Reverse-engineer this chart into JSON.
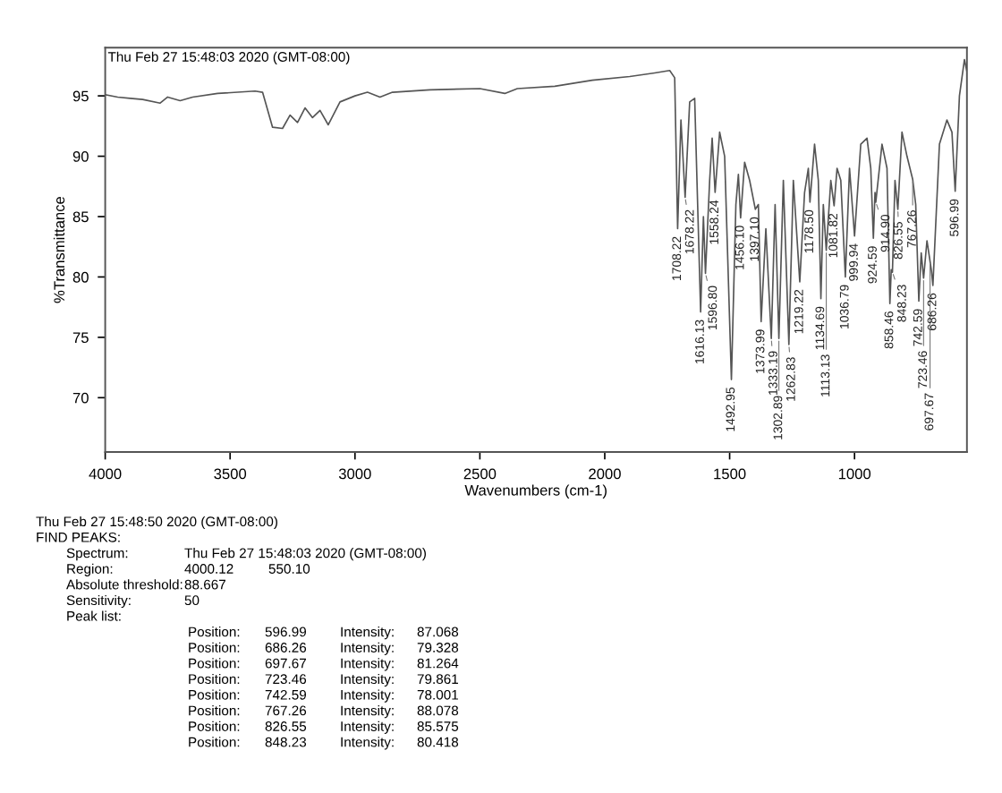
{
  "chart_data": {
    "type": "line",
    "xlabel": "Wavenumbers (cm-1)",
    "ylabel": "%Transmittance",
    "xlim": [
      4000,
      550
    ],
    "ylim": [
      65.5,
      99
    ],
    "xticks": [
      4000,
      3500,
      3000,
      2500,
      2000,
      1500,
      1000
    ],
    "yticks": [
      70,
      75,
      80,
      85,
      90,
      95
    ],
    "grid": false,
    "legend": false,
    "marker": "none",
    "line_style": "solid",
    "series": [
      {
        "color": "#555555",
        "x": [
          4000,
          3950,
          3900,
          3850,
          3780,
          3750,
          3700,
          3650,
          3550,
          3400,
          3370,
          3330,
          3290,
          3260,
          3230,
          3200,
          3170,
          3140,
          3107,
          3060,
          3000,
          2950,
          2900,
          2850,
          2700,
          2500,
          2400,
          2350,
          2200,
          2050,
          1900,
          1800,
          1740,
          1720,
          1708.22,
          1695,
          1678.22,
          1660,
          1640,
          1616.13,
          1605,
          1596.8,
          1580,
          1570,
          1558.24,
          1540,
          1520,
          1492.95,
          1475,
          1465,
          1456.1,
          1440,
          1420,
          1397.1,
          1385,
          1373.99,
          1355,
          1333.19,
          1318,
          1302.89,
          1285,
          1262.83,
          1245,
          1219.22,
          1200,
          1185,
          1178.5,
          1160,
          1145,
          1134.69,
          1125,
          1113.13,
          1095,
          1081.82,
          1070,
          1055,
          1036.79,
          1020,
          999.94,
          975,
          950,
          935,
          924.59,
          918,
          914.9,
          890,
          870,
          858.46,
          853,
          848.23,
          838,
          826.55,
          810,
          790,
          767.26,
          755,
          742.59,
          733,
          723.46,
          710,
          697.67,
          692,
          686.26,
          660,
          630,
          610,
          596.99,
          580,
          560,
          550
        ],
        "values": [
          95.1,
          94.9,
          94.8,
          94.7,
          94.4,
          94.9,
          94.6,
          94.9,
          95.2,
          95.4,
          95.3,
          92.4,
          92.3,
          93.4,
          92.8,
          94.0,
          93.2,
          93.8,
          92.6,
          94.5,
          95.0,
          95.3,
          94.9,
          95.3,
          95.5,
          95.6,
          95.2,
          95.6,
          95.8,
          96.3,
          96.6,
          96.9,
          97.1,
          96.5,
          84.0,
          93.0,
          86.6,
          94.5,
          94.8,
          77.1,
          85.0,
          80.3,
          88.0,
          91.5,
          87.0,
          92.0,
          90.0,
          71.5,
          86.0,
          88.5,
          84.9,
          89.5,
          88.0,
          85.6,
          86.0,
          76.3,
          84.0,
          74.9,
          86.0,
          74.9,
          88.0,
          74.4,
          88.0,
          79.6,
          87.0,
          89.0,
          86.2,
          91.0,
          88.0,
          78.2,
          86.0,
          82.2,
          88.0,
          85.9,
          89.0,
          88.0,
          80.0,
          89.0,
          83.4,
          91.0,
          91.5,
          89.0,
          83.2,
          87.0,
          86.2,
          91.0,
          89.0,
          77.8,
          80.6,
          80.4,
          88.0,
          85.6,
          92.0,
          90.0,
          88.1,
          86.0,
          78.0,
          82.0,
          79.9,
          83.0,
          81.3,
          80.5,
          79.3,
          91.0,
          93.0,
          92.0,
          87.1,
          95.0,
          98.0,
          97.0
        ]
      }
    ],
    "annotations": [
      "Thu Feb 27 15:48:03 2020 (GMT-08:00)",
      {
        "text": "1708.22",
        "x": 1708.22,
        "y": 84.0
      },
      {
        "text": "1678.22",
        "x": 1678.22,
        "y": 86.6
      },
      {
        "text": "1616.13",
        "x": 1616.13,
        "y": 77.1
      },
      {
        "text": "1596.80",
        "x": 1596.8,
        "y": 80.3
      },
      {
        "text": "1558.24",
        "x": 1558.24,
        "y": 87.0
      },
      {
        "text": "1492.95",
        "x": 1492.95,
        "y": 71.5
      },
      {
        "text": "1456.10",
        "x": 1456.1,
        "y": 84.9
      },
      {
        "text": "1397.10",
        "x": 1397.1,
        "y": 85.6
      },
      {
        "text": "1373.99",
        "x": 1373.99,
        "y": 76.3
      },
      {
        "text": "1333.19",
        "x": 1333.19,
        "y": 74.9
      },
      {
        "text": "1302.89",
        "x": 1302.89,
        "y": 74.9
      },
      {
        "text": "1262.83",
        "x": 1262.83,
        "y": 74.4
      },
      {
        "text": "1219.22",
        "x": 1219.22,
        "y": 79.6
      },
      {
        "text": "1178.50",
        "x": 1178.5,
        "y": 86.2
      },
      {
        "text": "1134.69",
        "x": 1134.69,
        "y": 78.2
      },
      {
        "text": "1113.13",
        "x": 1113.13,
        "y": 82.2
      },
      {
        "text": "1081.82",
        "x": 1081.82,
        "y": 85.9
      },
      {
        "text": "1036.79",
        "x": 1036.79,
        "y": 80.0
      },
      {
        "text": "999.94",
        "x": 999.94,
        "y": 83.4
      },
      {
        "text": "924.59",
        "x": 924.59,
        "y": 83.2
      },
      {
        "text": "914.90",
        "x": 914.9,
        "y": 86.2
      },
      {
        "text": "858.46",
        "x": 858.46,
        "y": 77.8
      },
      {
        "text": "848.23",
        "x": 848.23,
        "y": 80.4
      },
      {
        "text": "826.55",
        "x": 826.55,
        "y": 85.6
      },
      {
        "text": "767.26",
        "x": 767.26,
        "y": 88.1
      },
      {
        "text": "742.59",
        "x": 742.59,
        "y": 78.0
      },
      {
        "text": "723.46",
        "x": 723.46,
        "y": 79.9
      },
      {
        "text": "697.67",
        "x": 697.67,
        "y": 81.3
      },
      {
        "text": "686.26",
        "x": 686.26,
        "y": 79.3
      },
      {
        "text": "596.99",
        "x": 596.99,
        "y": 87.1
      },
      "Thu Feb 27 15:48:50 2020 (GMT-08:00)",
      "FIND PEAKS:",
      "Spectrum:\tThu Feb 27 15:48:03 2020 (GMT-08:00)",
      "Region:\t4000.12\t550.10",
      "Absolute threshold:\t88.667",
      "Sensitivity:\t50",
      "Peak list:",
      "Position:\t596.99\tIntensity:\t87.068",
      "Position:\t686.26\tIntensity:\t79.328",
      "Position:\t697.67\tIntensity:\t81.264",
      "Position:\t723.46\tIntensity:\t79.861",
      "Position:\t742.59\tIntensity:\t78.001",
      "Position:\t767.26\tIntensity:\t88.078",
      "Position:\t826.55\tIntensity:\t85.575",
      "Position:\t848.23\tIntensity:\t80.418"
    ]
  }
}
